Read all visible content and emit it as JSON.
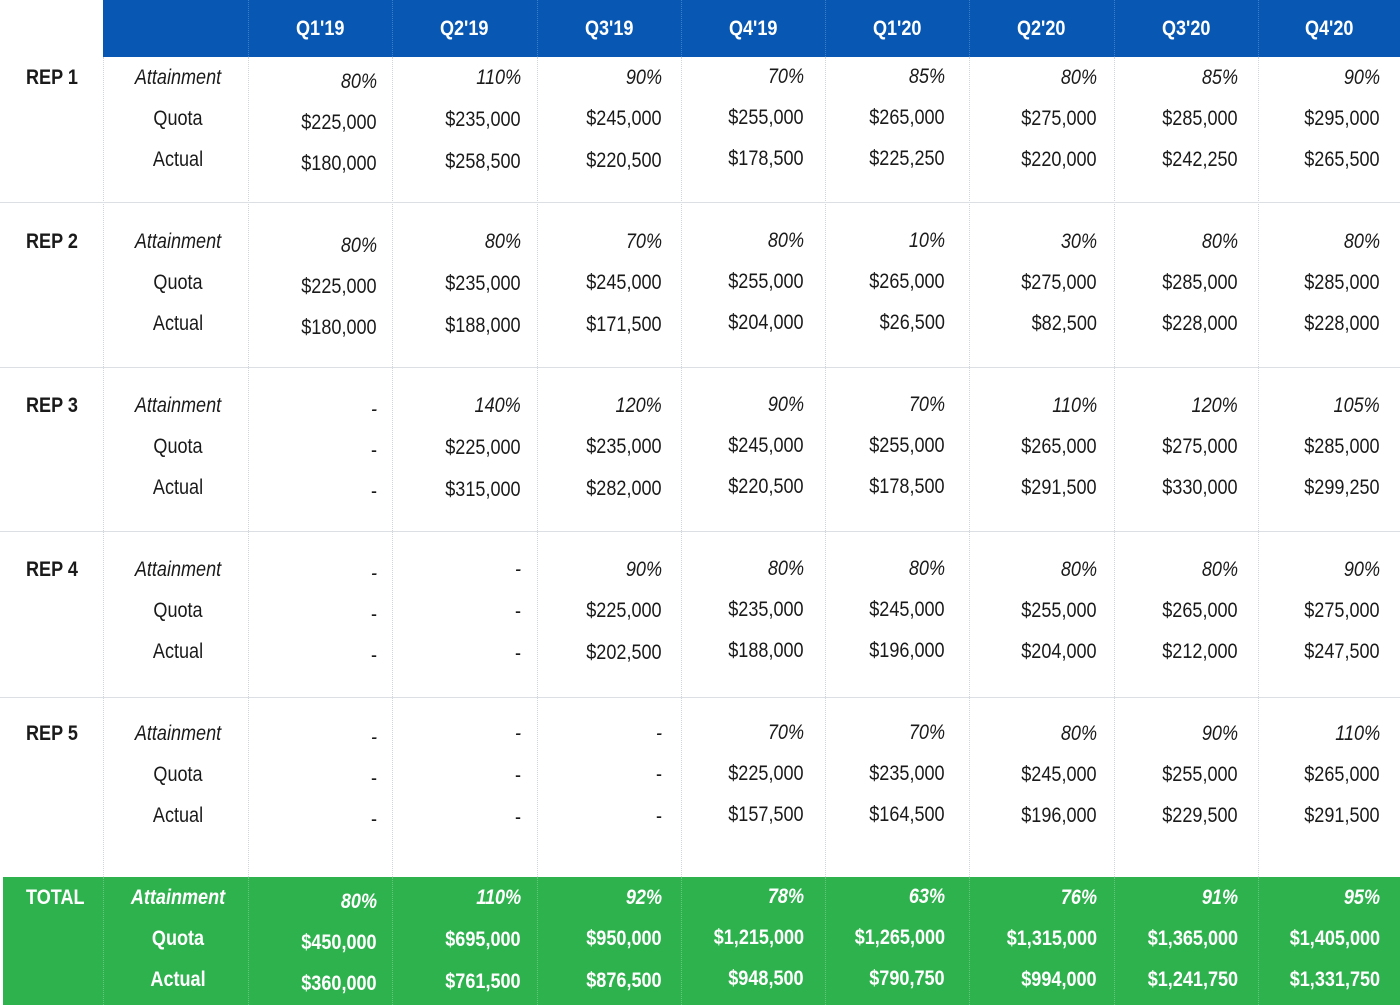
{
  "quarters": [
    "Q1'19",
    "Q2'19",
    "Q3'19",
    "Q4'19",
    "Q1'20",
    "Q2'20",
    "Q3'20",
    "Q4'20"
  ],
  "metric_labels": [
    "Attainment",
    "Quota",
    "Actual"
  ],
  "reps": [
    {
      "label": "REP 1",
      "attainment": [
        "80%",
        "110%",
        "90%",
        "70%",
        "85%",
        "80%",
        "85%",
        "90%"
      ],
      "quota": [
        "$225,000",
        "$235,000",
        "$245,000",
        "$255,000",
        "$265,000",
        "$275,000",
        "$285,000",
        "$295,000"
      ],
      "actual": [
        "$180,000",
        "$258,500",
        "$220,500",
        "$178,500",
        "$225,250",
        "$220,000",
        "$242,250",
        "$265,500"
      ]
    },
    {
      "label": "REP 2",
      "attainment": [
        "80%",
        "80%",
        "70%",
        "80%",
        "10%",
        "30%",
        "80%",
        "80%"
      ],
      "quota": [
        "$225,000",
        "$235,000",
        "$245,000",
        "$255,000",
        "$265,000",
        "$275,000",
        "$285,000",
        "$285,000"
      ],
      "actual": [
        "$180,000",
        "$188,000",
        "$171,500",
        "$204,000",
        "$26,500",
        "$82,500",
        "$228,000",
        "$228,000"
      ]
    },
    {
      "label": "REP 3",
      "attainment": [
        "-",
        "140%",
        "120%",
        "90%",
        "70%",
        "110%",
        "120%",
        "105%"
      ],
      "quota": [
        "-",
        "$225,000",
        "$235,000",
        "$245,000",
        "$255,000",
        "$265,000",
        "$275,000",
        "$285,000"
      ],
      "actual": [
        "-",
        "$315,000",
        "$282,000",
        "$220,500",
        "$178,500",
        "$291,500",
        "$330,000",
        "$299,250"
      ]
    },
    {
      "label": "REP 4",
      "attainment": [
        "-",
        "-",
        "90%",
        "80%",
        "80%",
        "80%",
        "80%",
        "90%"
      ],
      "quota": [
        "-",
        "-",
        "$225,000",
        "$235,000",
        "$245,000",
        "$255,000",
        "$265,000",
        "$275,000"
      ],
      "actual": [
        "-",
        "-",
        "$202,500",
        "$188,000",
        "$196,000",
        "$204,000",
        "$212,000",
        "$247,500"
      ]
    },
    {
      "label": "REP 5",
      "attainment": [
        "-",
        "-",
        "-",
        "70%",
        "70%",
        "80%",
        "90%",
        "110%"
      ],
      "quota": [
        "-",
        "-",
        "-",
        "$225,000",
        "$235,000",
        "$245,000",
        "$255,000",
        "$265,000"
      ],
      "actual": [
        "-",
        "-",
        "-",
        "$157,500",
        "$164,500",
        "$196,000",
        "$229,500",
        "$291,500"
      ]
    }
  ],
  "total": {
    "label": "TOTAL",
    "attainment": [
      "80%",
      "110%",
      "92%",
      "78%",
      "63%",
      "76%",
      "91%",
      "95%"
    ],
    "quota": [
      "$450,000",
      "$695,000",
      "$950,000",
      "$1,215,000",
      "$1,265,000",
      "$1,315,000",
      "$1,365,000",
      "$1,405,000"
    ],
    "actual": [
      "$360,000",
      "$761,500",
      "$876,500",
      "$948,500",
      "$790,750",
      "$994,000",
      "$1,241,750",
      "$1,331,750"
    ]
  },
  "colors": {
    "header": "#0757b3",
    "total": "#2eb24e"
  }
}
